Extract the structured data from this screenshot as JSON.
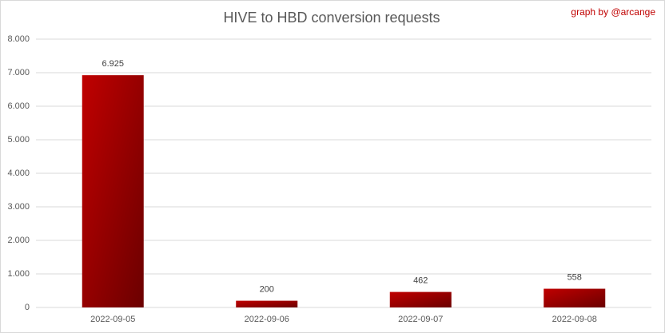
{
  "chart_data": {
    "type": "bar",
    "title": "HIVE to HBD conversion requests",
    "credit": "graph by @arcange",
    "categories": [
      "2022-09-05",
      "2022-09-06",
      "2022-09-07",
      "2022-09-08"
    ],
    "values": [
      6925,
      200,
      462,
      558
    ],
    "value_labels": [
      "6.925",
      "200",
      "462",
      "558"
    ],
    "color": "#c00000",
    "ylim": [
      0,
      8000
    ],
    "yticks": [
      0,
      {
        "value": 1000,
        "label": "1.000"
      },
      {
        "value": 2000,
        "label": "2.000"
      },
      {
        "value": 3000,
        "label": "3.000"
      },
      {
        "value": 4000,
        "label": "4.000"
      },
      {
        "value": 5000,
        "label": "5.000"
      },
      {
        "value": 6000,
        "label": "6.000"
      },
      {
        "value": 7000,
        "label": "7.000"
      },
      {
        "value": 8000,
        "label": "8.000"
      }
    ],
    "grid": true
  }
}
